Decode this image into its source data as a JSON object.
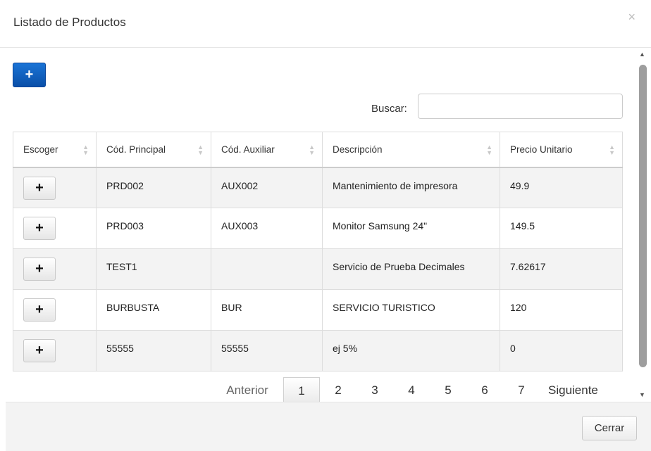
{
  "modal": {
    "title": "Listado de Productos",
    "close_icon": "×"
  },
  "toolbar": {
    "add_icon": "+"
  },
  "search": {
    "label": "Buscar:",
    "value": "",
    "placeholder": ""
  },
  "table": {
    "columns": [
      "Escoger",
      "Cód. Principal",
      "Cód. Auxiliar",
      "Descripción",
      "Precio Unitario"
    ],
    "pick_icon": "+",
    "rows": [
      {
        "principal": "PRD002",
        "auxiliar": "AUX002",
        "descripcion": "Mantenimiento de impresora",
        "precio": "49.9"
      },
      {
        "principal": "PRD003",
        "auxiliar": "AUX003",
        "descripcion": "Monitor Samsung 24\"",
        "precio": "149.5"
      },
      {
        "principal": "TEST1",
        "auxiliar": "",
        "descripcion": "Servicio de Prueba Decimales",
        "precio": "7.62617"
      },
      {
        "principal": "BURBUSTA",
        "auxiliar": "BUR",
        "descripcion": "SERVICIO TURISTICO",
        "precio": "120"
      },
      {
        "principal": "55555",
        "auxiliar": "55555",
        "descripcion": "ej 5%",
        "precio": "0"
      }
    ]
  },
  "pagination": {
    "previous": "Anterior",
    "pages": [
      "1",
      "2",
      "3",
      "4",
      "5",
      "6",
      "7"
    ],
    "current": "1",
    "next": "Siguiente"
  },
  "footer": {
    "close_label": "Cerrar"
  },
  "colors": {
    "primary": "#0a4fa8",
    "row_stripe": "#f3f3f3"
  }
}
